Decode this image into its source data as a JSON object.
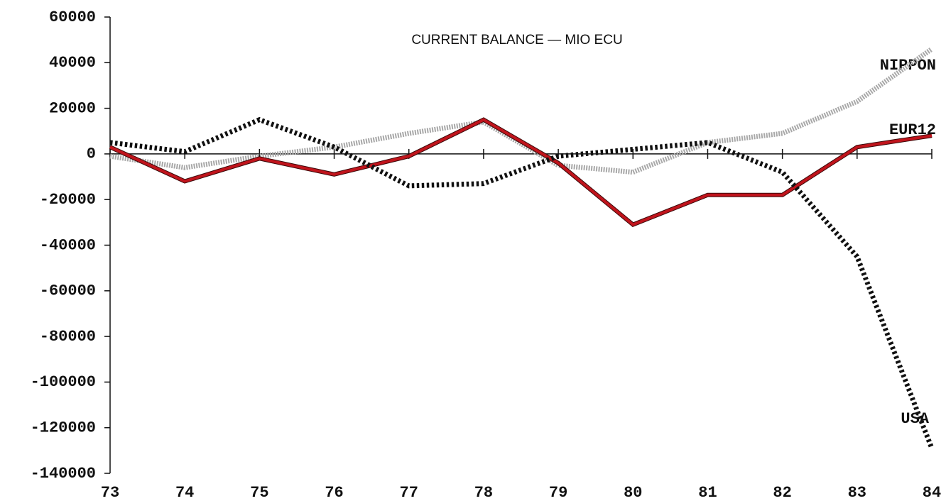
{
  "chart_data": {
    "type": "line",
    "title": "CURRENT BALANCE — MIO ECU",
    "categories": [
      "73",
      "74",
      "75",
      "76",
      "77",
      "78",
      "79",
      "80",
      "81",
      "82",
      "83",
      "84"
    ],
    "series": [
      {
        "name": "NIPPON",
        "color": "#a8a8a8",
        "line_style": "dotted",
        "values": [
          -1000,
          -6000,
          -1000,
          3000,
          9000,
          14000,
          -5000,
          -8000,
          5000,
          9000,
          23000,
          46000
        ]
      },
      {
        "name": "EUR12",
        "color": "#c0141c",
        "line_style": "solid",
        "values": [
          3000,
          -12000,
          -2000,
          -9000,
          -1000,
          15000,
          -4000,
          -31000,
          -18000,
          -18000,
          3000,
          8000
        ]
      },
      {
        "name": "USA",
        "color": "#111111",
        "line_style": "dashed",
        "values": [
          5000,
          1000,
          15000,
          3000,
          -14000,
          -13000,
          -1000,
          2000,
          5000,
          -8000,
          -45000,
          -129000
        ]
      }
    ],
    "ylim": [
      -140000,
      60000
    ],
    "yticks": [
      60000,
      40000,
      20000,
      0,
      -20000,
      -40000,
      -60000,
      -80000,
      -100000,
      -120000,
      -140000
    ]
  }
}
